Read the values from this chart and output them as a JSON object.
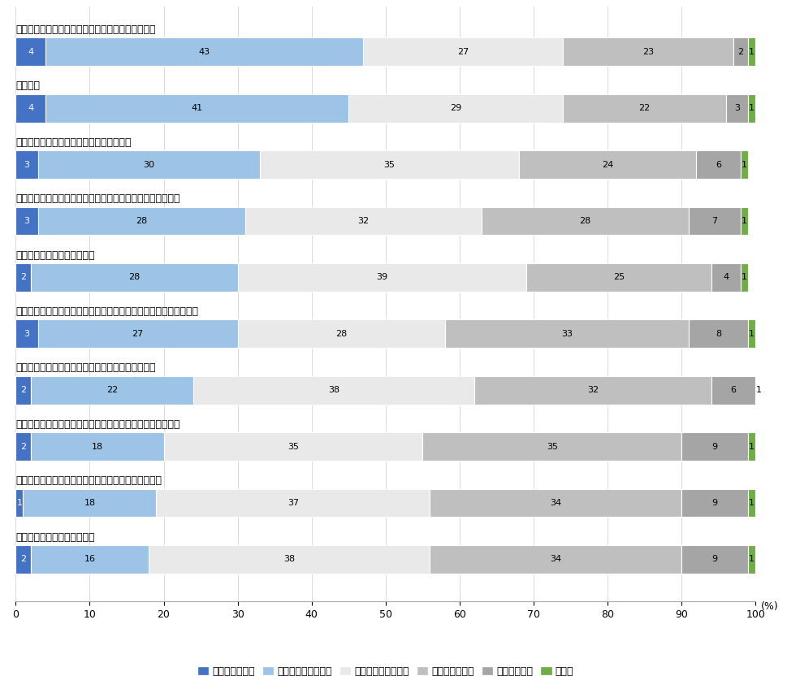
{
  "categories": [
    "医療サービス（保険料・サービスの質・費用など）",
    "年金制度",
    "学校教育（小中学校教育、高校教育など）",
    "子育て支援（育児休暖手当、保育サービス、児童手当など）",
    "公共安全（警察、消防など）",
    "介護・障がい者支援（保険料・サービスの質・障がい者手当など）",
    "緊急時・災害時の支援（災害救助、災害補償など）",
    "生活支援（失業給付、生活保護、公営貳貸住宅の提供など）",
    "雇用支援（求職支援、技能訓練支援、起業支援など）",
    "防衛（防御、警戒監視など）"
  ],
  "data": [
    [
      4,
      43,
      27,
      23,
      2,
      1
    ],
    [
      4,
      41,
      29,
      22,
      3,
      1
    ],
    [
      3,
      30,
      35,
      24,
      6,
      1
    ],
    [
      3,
      28,
      32,
      28,
      7,
      1
    ],
    [
      2,
      28,
      39,
      25,
      4,
      1
    ],
    [
      3,
      27,
      28,
      33,
      8,
      1
    ],
    [
      2,
      22,
      38,
      32,
      6,
      1
    ],
    [
      2,
      18,
      35,
      35,
      9,
      1
    ],
    [
      1,
      18,
      37,
      34,
      9,
      1
    ],
    [
      2,
      16,
      38,
      34,
      9,
      1
    ]
  ],
  "colors": [
    "#4472C4",
    "#9DC3E6",
    "#E9E9E9",
    "#BFBFBF",
    "#A5A5A5",
    "#70AD47"
  ],
  "legend_labels": [
    "よく知っている",
    "ある程度知っている",
    "どちらともいえない",
    "あまり知らない",
    "全く知らない",
    "無回答"
  ],
  "bar_height": 0.5,
  "figsize": [
    9.69,
    8.32
  ],
  "dpi": 100,
  "text_color_threshold": 2
}
